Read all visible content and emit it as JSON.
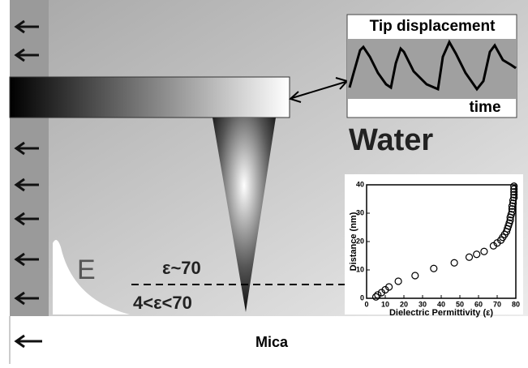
{
  "diagram": {
    "inset_label": "Tip displacement",
    "inset_axis": "time",
    "medium": "Water",
    "field_label": "E",
    "bulk_label": "ε~70",
    "interface_label": "4<ε<70",
    "substrate": "Mica"
  },
  "chart_data": {
    "type": "scatter",
    "x_label": "Dielectric Permittivity (ε)",
    "y_label": "Distance (nm)",
    "x": [
      5,
      6,
      8,
      10,
      12,
      17,
      26,
      36,
      47,
      55,
      59,
      63,
      68,
      70,
      72,
      73,
      74,
      75,
      75.5,
      76,
      76.5,
      77,
      77,
      77.5,
      78,
      78,
      78,
      78.5,
      78.5,
      79,
      79,
      79,
      79,
      79
    ],
    "values": [
      0.5,
      1.2,
      2,
      3,
      4,
      6,
      8,
      10.5,
      12.5,
      14.5,
      15.5,
      16.5,
      18.5,
      19.5,
      20.5,
      21.5,
      22.5,
      23.5,
      24.5,
      25.5,
      26.5,
      27.5,
      28.5,
      29.5,
      30.5,
      31.5,
      32.5,
      33.5,
      34.5,
      35.5,
      36.5,
      37.5,
      38.5,
      39.5
    ],
    "xlim": [
      0,
      80
    ],
    "ylim": [
      0,
      40
    ],
    "xticks": [
      0,
      10,
      20,
      30,
      40,
      50,
      60,
      70,
      80
    ],
    "yticks": [
      0,
      10,
      20,
      30,
      40
    ],
    "marker": "open-circle",
    "color": "#000000"
  }
}
